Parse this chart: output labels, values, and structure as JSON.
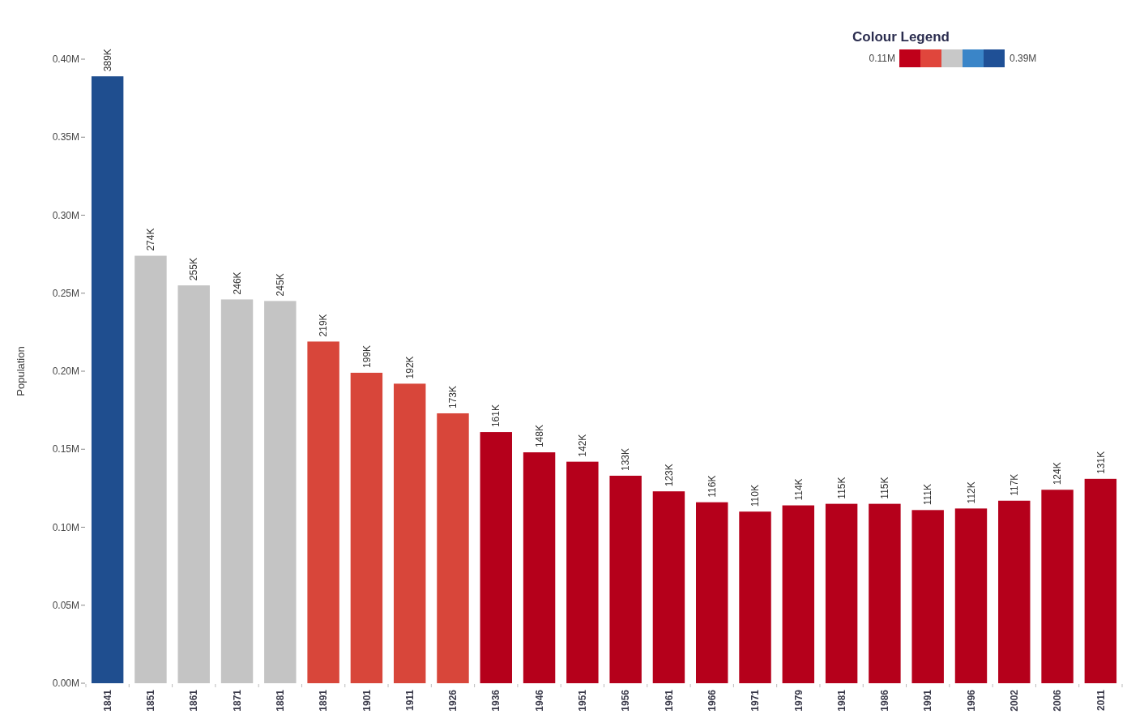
{
  "chart_data": {
    "type": "bar",
    "ylabel": "Population",
    "categories": [
      "1841",
      "1851",
      "1861",
      "1871",
      "1881",
      "1891",
      "1901",
      "1911",
      "1926",
      "1936",
      "1946",
      "1951",
      "1956",
      "1961",
      "1966",
      "1971",
      "1979",
      "1981",
      "1986",
      "1991",
      "1996",
      "2002",
      "2006",
      "2011"
    ],
    "values": [
      389000,
      274000,
      255000,
      246000,
      245000,
      219000,
      199000,
      192000,
      173000,
      161000,
      148000,
      142000,
      133000,
      123000,
      116000,
      110000,
      114000,
      115000,
      115000,
      111000,
      112000,
      117000,
      124000,
      131000
    ],
    "value_labels": [
      "389K",
      "274K",
      "255K",
      "246K",
      "245K",
      "219K",
      "199K",
      "192K",
      "173K",
      "161K",
      "148K",
      "142K",
      "133K",
      "123K",
      "116K",
      "110K",
      "114K",
      "115K",
      "115K",
      "111K",
      "112K",
      "117K",
      "124K",
      "131K"
    ],
    "colors": [
      "#1f4e8f",
      "#c4c4c4",
      "#c4c4c4",
      "#c4c4c4",
      "#c4c4c4",
      "#d8463a",
      "#d8463a",
      "#d8463a",
      "#d8463a",
      "#b5001b",
      "#b5001b",
      "#b5001b",
      "#b5001b",
      "#b5001b",
      "#b5001b",
      "#b5001b",
      "#b5001b",
      "#b5001b",
      "#b5001b",
      "#b5001b",
      "#b5001b",
      "#b5001b",
      "#b5001b",
      "#b5001b"
    ],
    "ylim": [
      0,
      400000
    ],
    "yticks": [
      {
        "value": 0,
        "label": "0.00M"
      },
      {
        "value": 50000,
        "label": "0.05M"
      },
      {
        "value": 100000,
        "label": "0.10M"
      },
      {
        "value": 150000,
        "label": "0.15M"
      },
      {
        "value": 200000,
        "label": "0.20M"
      },
      {
        "value": 250000,
        "label": "0.25M"
      },
      {
        "value": 300000,
        "label": "0.30M"
      },
      {
        "value": 350000,
        "label": "0.35M"
      },
      {
        "value": 400000,
        "label": "0.40M"
      }
    ],
    "clabel": "Colour Legend",
    "clim": [
      110000,
      390000
    ],
    "cticks": [
      {
        "value": 110000,
        "label": "0.11M"
      },
      {
        "value": 390000,
        "label": "0.39M"
      }
    ]
  }
}
